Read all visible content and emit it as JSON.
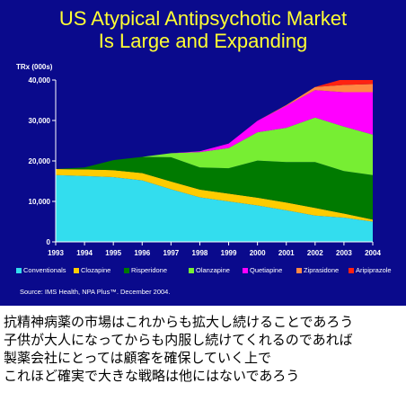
{
  "slide": {
    "title_line1": "US Atypical Antipsychotic Market",
    "title_line2": "Is Large and Expanding",
    "source": "Source: IMS Health, NPA Plus™. December 2004."
  },
  "caption": [
    "抗精神病薬の市場はこれからも拡大し続けることであろう",
    "子供が大人になってからも内服し続けてくれるのであれば",
    "製薬会社にとっては顧客を確保していく上で",
    "これほど確実で大きな戦略は他にはないであろう"
  ],
  "chart_data": {
    "type": "area",
    "stacked": true,
    "ylabel": "TRx (000s)",
    "ylim": [
      0,
      40000
    ],
    "y_ticks": [
      "0",
      "10,000",
      "20,000",
      "30,000",
      "40,000"
    ],
    "x": [
      "1993",
      "1994",
      "1995",
      "1996",
      "1997",
      "1998",
      "1999",
      "2000",
      "2001",
      "2002",
      "2003",
      "2004"
    ],
    "grid": false,
    "legend_position": "bottom",
    "series": [
      {
        "name": "Conventionals",
        "color": "#33ddee",
        "values": [
          16500,
          16300,
          16000,
          15200,
          13000,
          11000,
          10000,
          9000,
          7800,
          6500,
          6000,
          5000
        ]
      },
      {
        "name": "Clozapine",
        "color": "#ffcc00",
        "values": [
          1500,
          1600,
          1700,
          1800,
          1900,
          1900,
          1900,
          1900,
          1900,
          1900,
          1000,
          500
        ]
      },
      {
        "name": "Risperidone",
        "color": "#007a00",
        "values": [
          0,
          500,
          2500,
          4000,
          6000,
          5500,
          6300,
          9200,
          10000,
          11300,
          10500,
          11000
        ]
      },
      {
        "name": "Olanzapine",
        "color": "#77ee33",
        "values": [
          0,
          0,
          0,
          0,
          1000,
          3800,
          5000,
          7000,
          8500,
          11000,
          11000,
          10000
        ]
      },
      {
        "name": "Quetiapine",
        "color": "#ff00ff",
        "values": [
          0,
          0,
          0,
          0,
          0,
          200,
          1100,
          2800,
          5400,
          6800,
          8500,
          10500
        ]
      },
      {
        "name": "Ziprasidone",
        "color": "#ff8844",
        "values": [
          0,
          0,
          0,
          0,
          0,
          0,
          0,
          0,
          200,
          800,
          1800,
          2000
        ]
      },
      {
        "name": "Aripiprazole",
        "color": "#ff2211",
        "values": [
          0,
          0,
          0,
          0,
          0,
          0,
          0,
          0,
          0,
          0,
          1500,
          1500
        ]
      }
    ]
  }
}
